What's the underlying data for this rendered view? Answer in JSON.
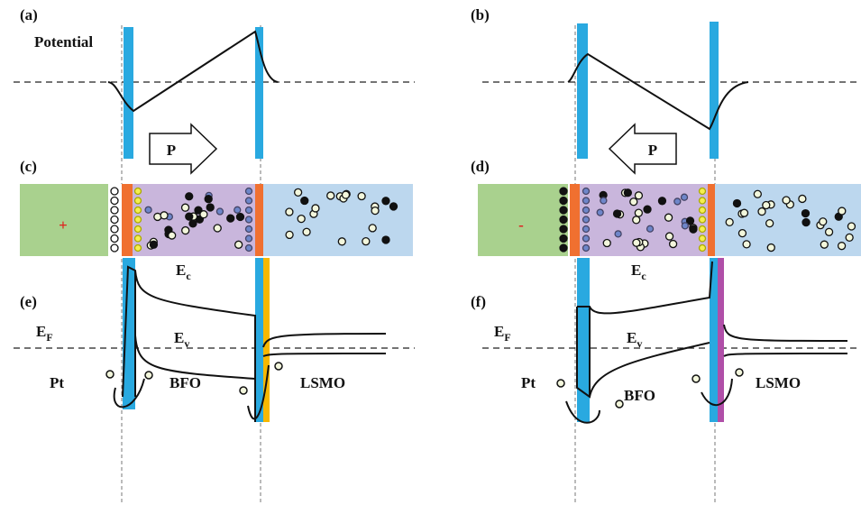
{
  "panels": {
    "a": {
      "label": "(a)",
      "axis_label": "Potential"
    },
    "b": {
      "label": "(b)"
    },
    "c": {
      "label": "(c)",
      "polarization": "P",
      "electrode_charge": "+"
    },
    "d": {
      "label": "(d)",
      "polarization": "P",
      "electrode_charge": "-"
    },
    "e": {
      "label": "(e)",
      "conduction_band": {
        "symbol": "E",
        "subscript": "c"
      },
      "fermi_level": {
        "symbol": "E",
        "subscript": "F"
      },
      "valence_band": {
        "symbol": "E",
        "subscript": "v"
      },
      "layers": [
        "Pt",
        "BFO",
        "LSMO"
      ]
    },
    "f": {
      "label": "(f)",
      "conduction_band": {
        "symbol": "E",
        "subscript": "c"
      },
      "fermi_level": {
        "symbol": "E",
        "subscript": "F"
      },
      "valence_band": {
        "symbol": "E",
        "subscript": "v"
      },
      "layers": [
        "Pt",
        "BFO",
        "LSMO"
      ]
    }
  }
}
